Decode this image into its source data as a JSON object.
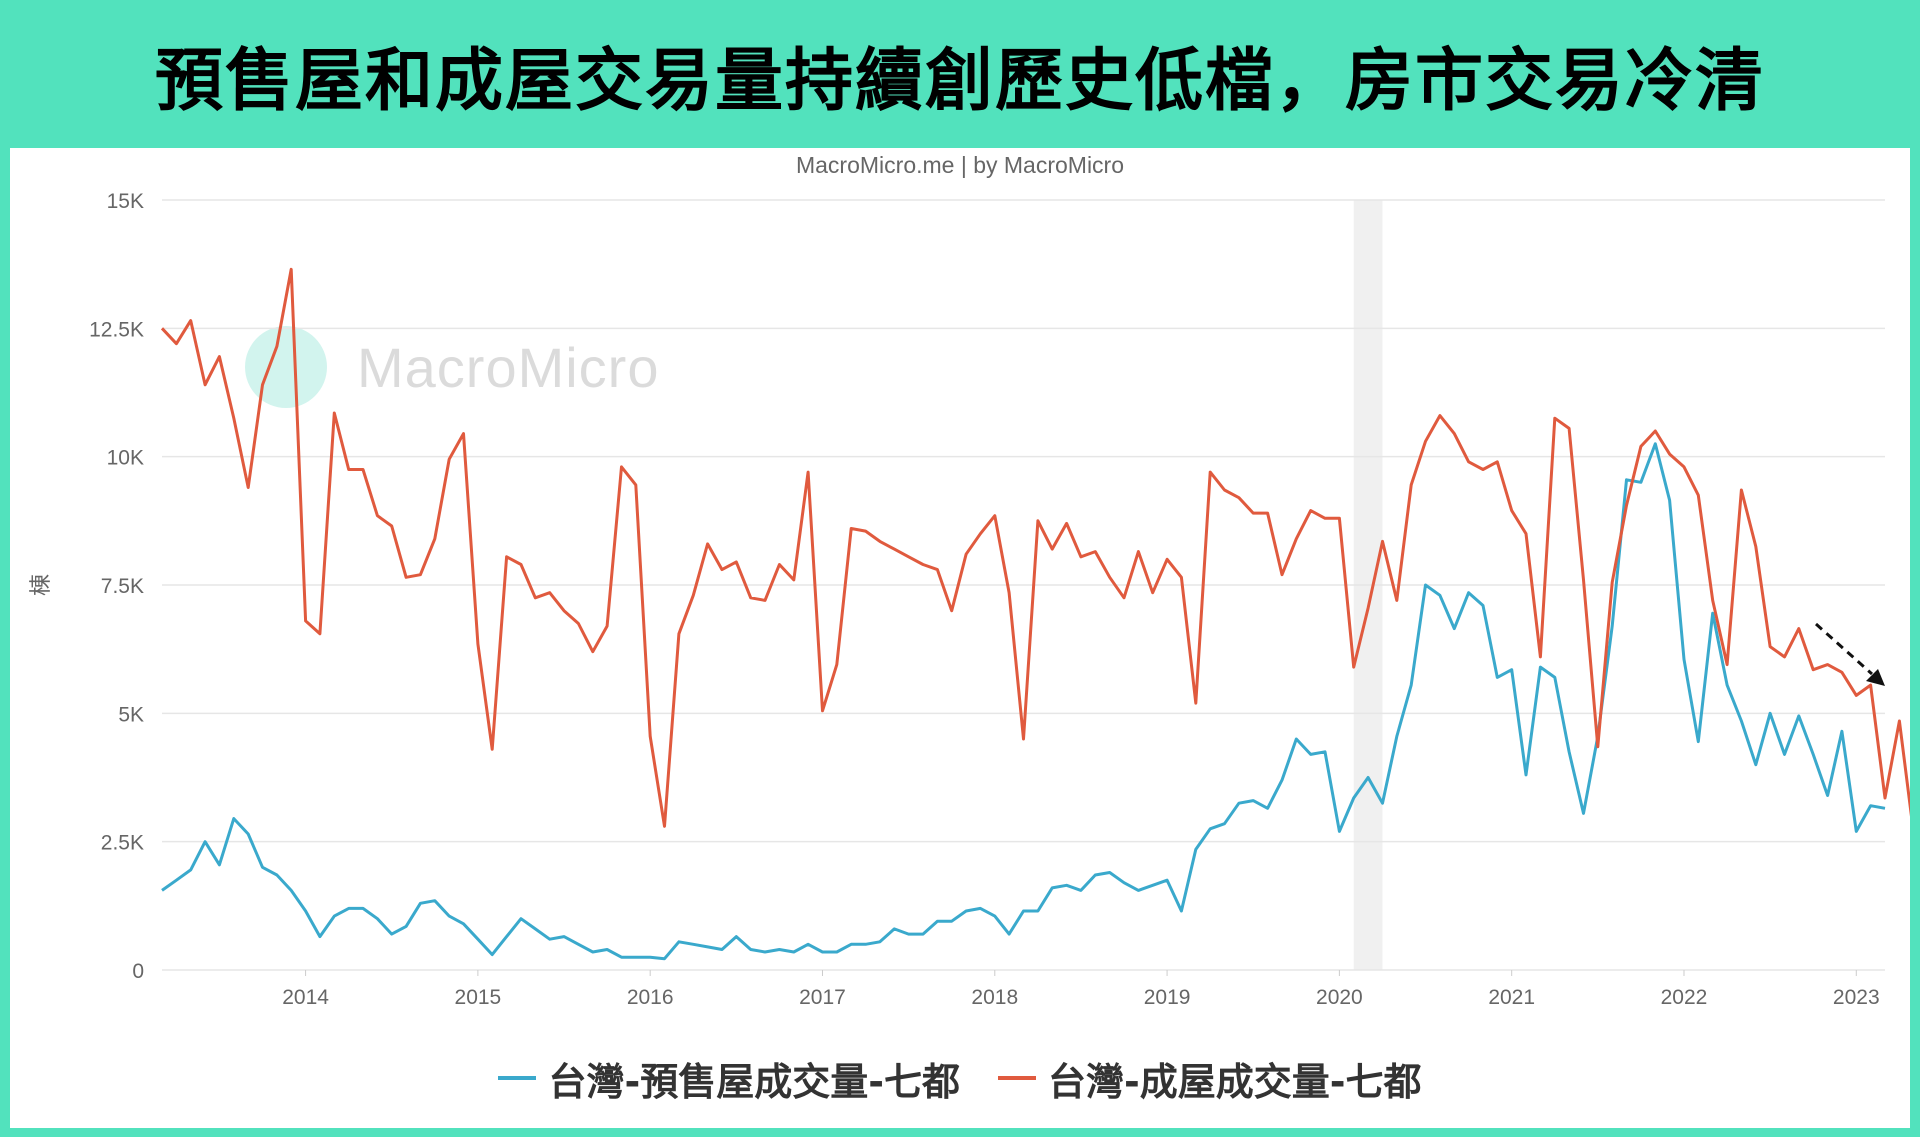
{
  "banner": {
    "title": "預售屋和成屋交易量持續創歷史低檔，房市交易冷清"
  },
  "source_text": "MacroMicro.me | by MacroMicro",
  "watermark": "MacroMicro",
  "colors": {
    "presale": "#3aa9cc",
    "existing": "#e05a3e",
    "background": "#52e2bd",
    "recession_band": "#f0f0f0"
  },
  "chart_data": {
    "type": "line",
    "title": "",
    "xlabel": "",
    "ylabel": "棟",
    "ylim": [
      0,
      15000
    ],
    "yticks": [
      0,
      2500,
      5000,
      7500,
      10000,
      12500,
      15000
    ],
    "ytick_labels": [
      "0",
      "2.5K",
      "5K",
      "7.5K",
      "10K",
      "12.5K",
      "15K"
    ],
    "x_start": "2013-03",
    "x_end": "2023-03",
    "xticks": [
      "2014",
      "2015",
      "2016",
      "2017",
      "2018",
      "2019",
      "2020",
      "2021",
      "2022",
      "2023"
    ],
    "shaded_period": [
      "2020-02",
      "2020-04"
    ],
    "legend_position": "bottom",
    "series": [
      {
        "name": "台灣-預售屋成交量-七都",
        "start": "2013-03",
        "values": [
          1550,
          1750,
          1950,
          2500,
          2050,
          2950,
          2650,
          2000,
          1850,
          1550,
          1150,
          650,
          1050,
          1200,
          1200,
          1000,
          700,
          850,
          1300,
          1350,
          1050,
          900,
          600,
          300,
          650,
          1000,
          800,
          600,
          650,
          500,
          350,
          400,
          250,
          250,
          250,
          220,
          550,
          500,
          450,
          400,
          650,
          400,
          350,
          400,
          350,
          500,
          350,
          350,
          500,
          500,
          550,
          800,
          700,
          700,
          950,
          950,
          1150,
          1200,
          1050,
          700,
          1150,
          1150,
          1600,
          1650,
          1550,
          1850,
          1900,
          1700,
          1550,
          1650,
          1750,
          1150,
          2350,
          2750,
          2850,
          3250,
          3300,
          3150,
          3700,
          4500,
          4200,
          4250,
          2700,
          3350,
          3750,
          3250,
          4550,
          5550,
          7500,
          7300,
          6650,
          7350,
          7100,
          5700,
          5850,
          3800,
          5900,
          5700,
          4250,
          3050,
          4550,
          6700,
          9550,
          9500,
          10250,
          9150,
          6050,
          4450,
          6950,
          5550,
          4850,
          4000,
          5000,
          4200,
          4950,
          4200,
          3400,
          4650,
          2700,
          3200,
          3150
        ]
      },
      {
        "name": "台灣-成屋成交量-七都",
        "start": "2013-03",
        "values": [
          12500,
          12200,
          12650,
          11400,
          11950,
          10750,
          9400,
          11400,
          12150,
          13650,
          6800,
          6550,
          10850,
          9750,
          9750,
          8850,
          8650,
          7650,
          7700,
          8400,
          9950,
          10450,
          6350,
          4300,
          8050,
          7900,
          7250,
          7350,
          7000,
          6750,
          6200,
          6700,
          9800,
          9450,
          4550,
          2800,
          6550,
          7300,
          8300,
          7800,
          7950,
          7250,
          7200,
          7900,
          7600,
          9700,
          5050,
          5950,
          8600,
          8550,
          8350,
          8200,
          8050,
          7900,
          7800,
          7000,
          8100,
          8500,
          8850,
          7350,
          4500,
          8750,
          8200,
          8700,
          8050,
          8150,
          7650,
          7250,
          8150,
          7350,
          8000,
          7650,
          5200,
          9700,
          9350,
          9200,
          8900,
          8900,
          7700,
          8400,
          8950,
          8800,
          8800,
          5900,
          7050,
          8350,
          7200,
          9450,
          10300,
          10800,
          10450,
          9900,
          9750,
          9900,
          8950,
          8500,
          6100,
          10750,
          10550,
          7600,
          4350,
          7550,
          9050,
          10200,
          10500,
          10050,
          9800,
          9250,
          7200,
          5950,
          9350,
          8250,
          6300,
          6100,
          6650,
          5850,
          5950,
          5800,
          5350,
          5550,
          3350,
          4850,
          2650
        ]
      }
    ]
  }
}
